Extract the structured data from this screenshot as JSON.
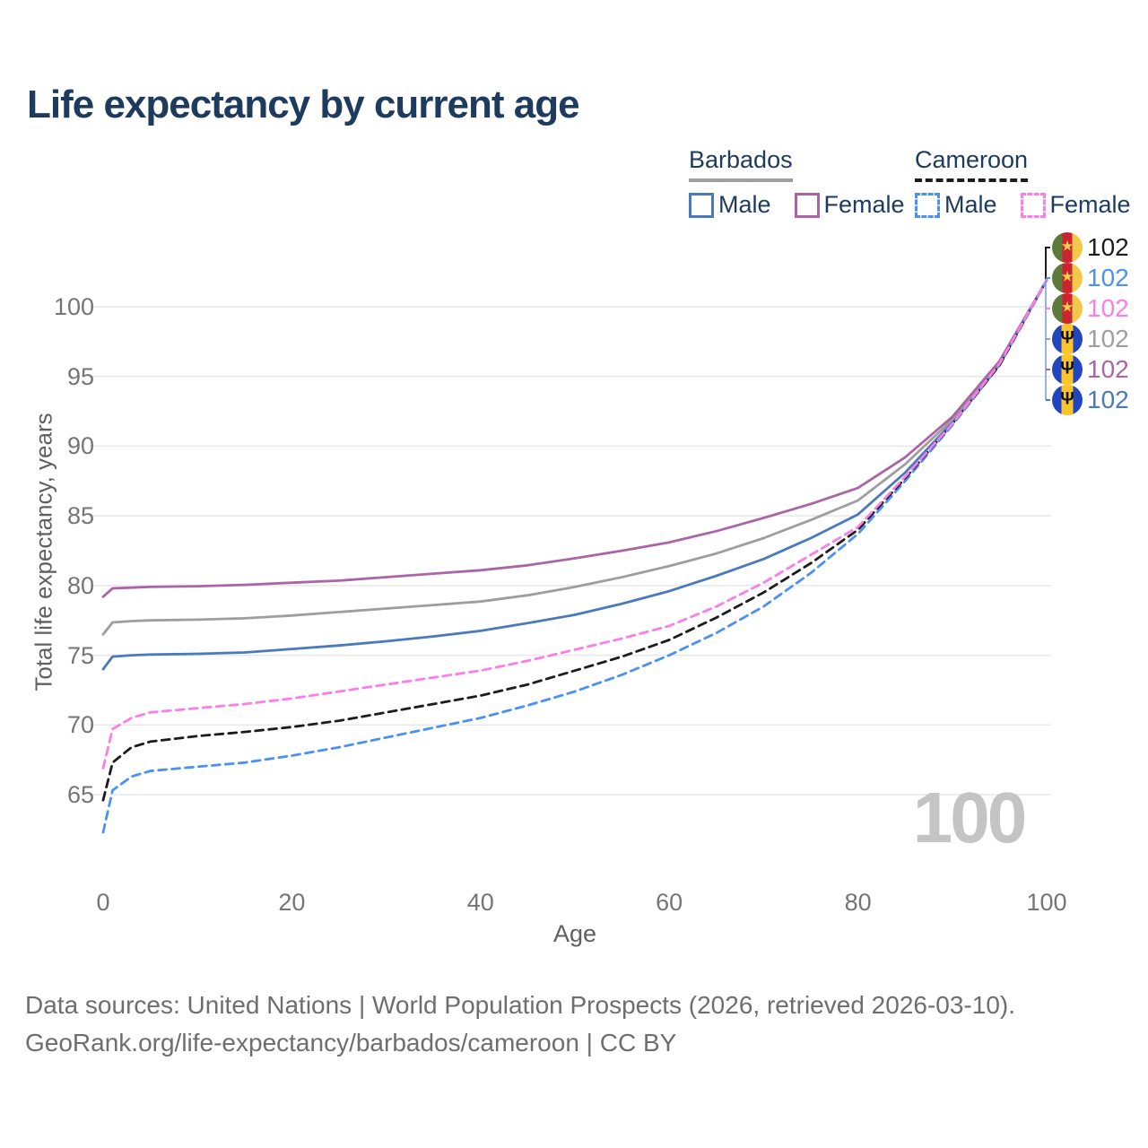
{
  "title": "Life expectancy by current age",
  "legend": {
    "groups": [
      {
        "name": "Barbados",
        "line_style": "solid",
        "underline_color": "#9e9e9e",
        "items": [
          {
            "label": "Male",
            "color": "#4a79bd"
          },
          {
            "label": "Female",
            "color": "#ab64a6"
          }
        ]
      },
      {
        "name": "Cameroon",
        "line_style": "dashed",
        "underline_color": "#1c1c1c",
        "items": [
          {
            "label": "Male",
            "color": "#4a90f5"
          },
          {
            "label": "Female",
            "color": "#fb7dea"
          }
        ]
      }
    ]
  },
  "chart_data": {
    "type": "line",
    "title": "Life expectancy by current age",
    "xlabel": "Age",
    "ylabel": "Total life expectancy, years",
    "xticks": [
      0,
      20,
      40,
      60,
      80,
      100
    ],
    "yticks": [
      65,
      70,
      75,
      80,
      85,
      90,
      95,
      100
    ],
    "xlim": [
      0,
      100
    ],
    "ylim": [
      62,
      103
    ],
    "grid": "horizontal",
    "legend_position": "top-right",
    "x": [
      0,
      1,
      3,
      5,
      10,
      15,
      20,
      25,
      30,
      35,
      40,
      45,
      50,
      55,
      60,
      65,
      70,
      75,
      80,
      85,
      90,
      95,
      100
    ],
    "series": [
      {
        "id": "barbados-male",
        "name": "Barbados Male",
        "color": "#4a79bd",
        "dash": false,
        "values": [
          74.0,
          74.9,
          75.0,
          75.05,
          75.1,
          75.2,
          75.45,
          75.7,
          76.0,
          76.35,
          76.75,
          77.3,
          77.9,
          78.7,
          79.6,
          80.7,
          81.9,
          83.4,
          85.1,
          88.1,
          91.7,
          95.9,
          101.9
        ]
      },
      {
        "id": "barbados-all",
        "name": "Barbados",
        "color": "#9e9e9e",
        "dash": false,
        "values": [
          76.5,
          77.35,
          77.45,
          77.5,
          77.55,
          77.65,
          77.85,
          78.1,
          78.35,
          78.6,
          78.85,
          79.3,
          79.9,
          80.6,
          81.4,
          82.3,
          83.4,
          84.7,
          86.1,
          88.7,
          91.9,
          96.0,
          101.9
        ]
      },
      {
        "id": "barbados-female",
        "name": "Barbados Female",
        "color": "#ab64a6",
        "dash": false,
        "values": [
          79.2,
          79.8,
          79.85,
          79.9,
          79.95,
          80.05,
          80.2,
          80.35,
          80.6,
          80.85,
          81.1,
          81.45,
          81.95,
          82.5,
          83.1,
          83.9,
          84.85,
          85.85,
          87.0,
          89.2,
          92.1,
          96.1,
          101.9
        ]
      },
      {
        "id": "cameroon-male",
        "name": "Cameroon Male",
        "color": "#4a90f5",
        "dash": true,
        "values": [
          62.3,
          65.3,
          66.3,
          66.7,
          67.0,
          67.3,
          67.8,
          68.4,
          69.1,
          69.8,
          70.5,
          71.4,
          72.4,
          73.6,
          75.0,
          76.6,
          78.5,
          80.9,
          83.7,
          87.5,
          91.5,
          95.8,
          101.9
        ]
      },
      {
        "id": "cameroon-all",
        "name": "Cameroon",
        "color": "#1c1c1c",
        "dash": true,
        "values": [
          64.6,
          67.3,
          68.4,
          68.8,
          69.2,
          69.5,
          69.85,
          70.3,
          70.9,
          71.5,
          72.1,
          72.9,
          73.9,
          74.9,
          76.1,
          77.7,
          79.5,
          81.6,
          84.0,
          87.7,
          91.6,
          95.8,
          101.9
        ]
      },
      {
        "id": "cameroon-female",
        "name": "Cameroon Female",
        "color": "#fb7dea",
        "dash": true,
        "values": [
          66.9,
          69.7,
          70.5,
          70.9,
          71.2,
          71.5,
          71.9,
          72.4,
          72.9,
          73.4,
          73.9,
          74.6,
          75.4,
          76.2,
          77.1,
          78.5,
          80.2,
          82.2,
          84.2,
          87.8,
          91.6,
          95.9,
          101.9
        ]
      }
    ]
  },
  "end_labels": [
    {
      "series": "Cameroon",
      "flag": "cameroon",
      "value": "102",
      "color": "#1c1c1c"
    },
    {
      "series": "Cameroon Male",
      "flag": "cameroon",
      "value": "102",
      "color": "#4a90f5"
    },
    {
      "series": "Cameroon Female",
      "flag": "cameroon",
      "value": "102",
      "color": "#fb7dea"
    },
    {
      "series": "Barbados",
      "flag": "barbados",
      "value": "102",
      "color": "#9e9e9e"
    },
    {
      "series": "Barbados Female",
      "flag": "barbados",
      "value": "102",
      "color": "#ab64a6"
    },
    {
      "series": "Barbados Male",
      "flag": "barbados",
      "value": "102",
      "color": "#4a79bd"
    }
  ],
  "watermark": "100",
  "flag_glyphs": {
    "cameroon": "★",
    "barbados": "Ψ"
  },
  "footer": {
    "line1": "Data sources: United Nations | World Population Prospects (2026, retrieved 2026-03-10).",
    "line2": "GeoRank.org/life-expectancy/barbados/cameroon | CC BY"
  }
}
